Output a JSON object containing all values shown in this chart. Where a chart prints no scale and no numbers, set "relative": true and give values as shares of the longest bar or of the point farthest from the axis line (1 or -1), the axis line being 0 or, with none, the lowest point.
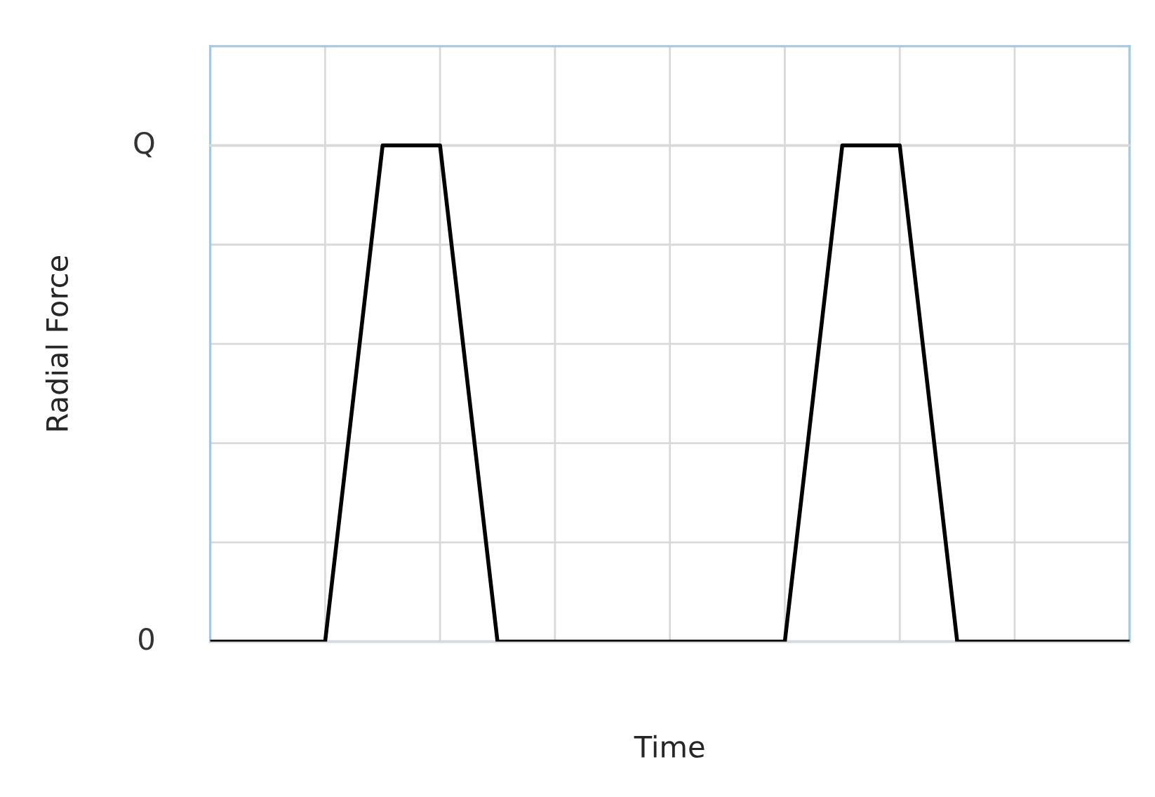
{
  "chart_data": {
    "type": "line",
    "xlabel": "Time",
    "ylabel": "Radial Force",
    "relative": true,
    "categories": [
      null,
      null,
      null,
      null,
      null,
      null,
      null,
      null,
      null,
      null,
      null,
      null,
      null,
      null,
      null,
      null,
      null
    ],
    "series": [
      {
        "color": "#000000",
        "values": [
          0,
          0,
          0,
          1,
          1,
          0,
          0,
          0,
          0,
          0,
          0,
          1,
          1,
          0,
          0,
          0,
          0
        ]
      }
    ],
    "ref_lines": [
      {
        "axis": "y",
        "value": 0,
        "label": "0",
        "color": "#d9d9d9"
      },
      {
        "axis": "y",
        "value": 1,
        "label": "Q",
        "color": "#d9d9d9"
      }
    ],
    "grid": true,
    "marker": "none",
    "line_style": "solid"
  }
}
